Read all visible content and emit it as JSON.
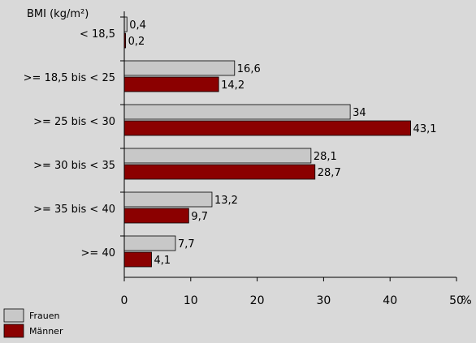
{
  "chart_data": {
    "type": "bar",
    "orientation": "horizontal",
    "y_axis_title": "BMI (kg/m²)",
    "x_unit": "%",
    "categories": [
      "< 18,5",
      ">= 18,5 bis < 25",
      ">= 25 bis < 30",
      ">= 30 bis < 35",
      ">= 35 bis < 40",
      ">= 40"
    ],
    "series": [
      {
        "name": "Frauen",
        "color": "#c8c8c8",
        "values": [
          0.4,
          16.6,
          34,
          28.1,
          13.2,
          7.7
        ],
        "labels": [
          "0,4",
          "16,6",
          "34",
          "28,1",
          "13,2",
          "7,7"
        ]
      },
      {
        "name": "Männer",
        "color": "#8b0000",
        "values": [
          0.2,
          14.2,
          43.1,
          28.7,
          9.7,
          4.1
        ],
        "labels": [
          "0,2",
          "14,2",
          "43,1",
          "28,7",
          "9,7",
          "4,1"
        ]
      }
    ],
    "xlim": [
      0,
      50
    ],
    "xticks": [
      0,
      10,
      20,
      30,
      40,
      50
    ],
    "xtick_labels": [
      "0",
      "10",
      "20",
      "30",
      "40",
      "50"
    ],
    "grid": false,
    "legend_position": "bottom-left"
  }
}
